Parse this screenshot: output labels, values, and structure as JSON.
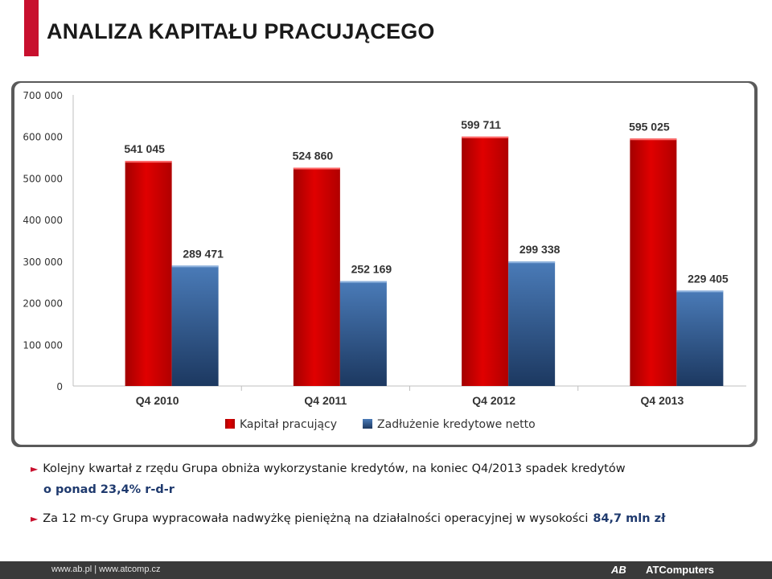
{
  "page": {
    "title": "ANALIZA KAPITAŁU PRACUJĄCEGO"
  },
  "chart_data": {
    "type": "bar",
    "categories": [
      "Q4 2010",
      "Q4 2011",
      "Q4 2012",
      "Q4 2013"
    ],
    "series": [
      {
        "name": "Kapitał pracujący",
        "values": [
          541045,
          524860,
          599711,
          595025
        ],
        "labels": [
          "541 045",
          "524 860",
          "599 711",
          "595 025"
        ],
        "color": "#cc0000"
      },
      {
        "name": "Zadłużenie kredytowe netto",
        "values": [
          289471,
          252169,
          299338,
          229405
        ],
        "labels": [
          "289 471",
          "252 169",
          "299 338",
          "229 405"
        ],
        "color": "#2f5a8f"
      }
    ],
    "ylim": [
      0,
      700000
    ],
    "yticks": [
      0,
      100000,
      200000,
      300000,
      400000,
      500000,
      600000,
      700000
    ],
    "ytick_labels": [
      "0",
      "100 000",
      "200 000",
      "300 000",
      "400 000",
      "500 000",
      "600 000",
      "700 000"
    ],
    "grid": false,
    "legend": "bottom",
    "title": "",
    "xlabel": "",
    "ylabel": ""
  },
  "bullets": {
    "b1": "Kolejny kwartał z rzędu Grupa obniża wykorzystanie kredytów, na koniec Q4/2013 spadek kredytów",
    "b1_cont": "o ponad 23,4% r-d-r",
    "b2": "Za 12 m-cy Grupa wypracowała nadwyżkę pieniężną na działalności operacyjnej w wysokości",
    "b2_highlight": "84,7 mln zł",
    "arrow": "►"
  },
  "footer": {
    "links": "www.ab.pl  |  www.atcomp.cz",
    "logo": "AB",
    "brand": "ATComputers"
  },
  "colors": {
    "accent": "#c8102e",
    "highlight": "#1f3a6e"
  }
}
